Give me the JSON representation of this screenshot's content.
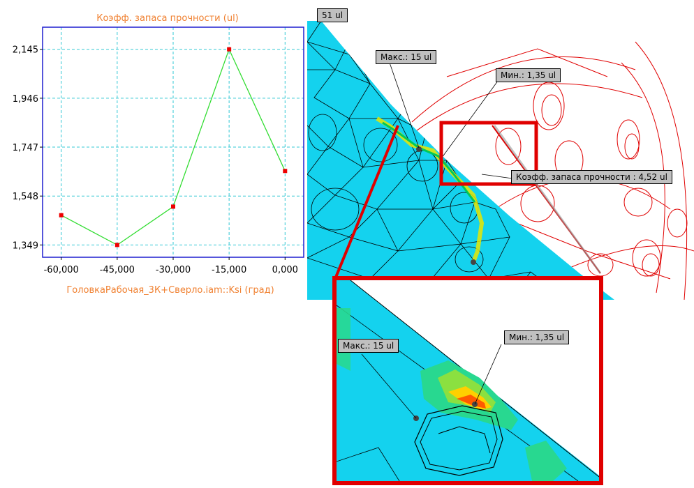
{
  "chart_data": {
    "type": "line",
    "title": "Коэфф. запаса прочности (ul)",
    "xlabel": "ГоловкаРабочая_3К+Сверло.iam::Ksi (град)",
    "ylabel": "",
    "x": [
      -60,
      -45,
      -30,
      -15,
      0
    ],
    "series": [
      {
        "values": [
          1.47,
          1.349,
          1.505,
          2.145,
          1.65
        ]
      }
    ],
    "xlim": [
      -65,
      5
    ],
    "ylim": [
      1.299,
      2.235
    ],
    "x_ticks": [
      "-60,000",
      "-45,000",
      "-30,000",
      "-15,000",
      "0,000"
    ],
    "y_ticks": [
      "2,145",
      "1,946",
      "1,747",
      "1,548",
      "1,349"
    ],
    "y_tick_values": [
      2.145,
      1.946,
      1.747,
      1.548,
      1.349
    ],
    "grid": true,
    "colors": {
      "line": "#33dd33",
      "marker": "#ee0000",
      "frame": "#1f1fcf",
      "grid": "#33c8d4",
      "title": "#f08030"
    }
  },
  "fea_labels": {
    "top_partial": "51 ul",
    "max": "Макс.: 15 ul",
    "min": "Мин.: 1,35 ul",
    "probe": "Коэфф. запаса прочности : 4,52 ul"
  },
  "zoom_labels": {
    "max": "Макс.: 15 ul",
    "min": "Мин.: 1,35 ul"
  },
  "colors": {
    "mesh_fill": "#14d2ee",
    "highlight": "#e00000",
    "sketch": "#e00000"
  }
}
